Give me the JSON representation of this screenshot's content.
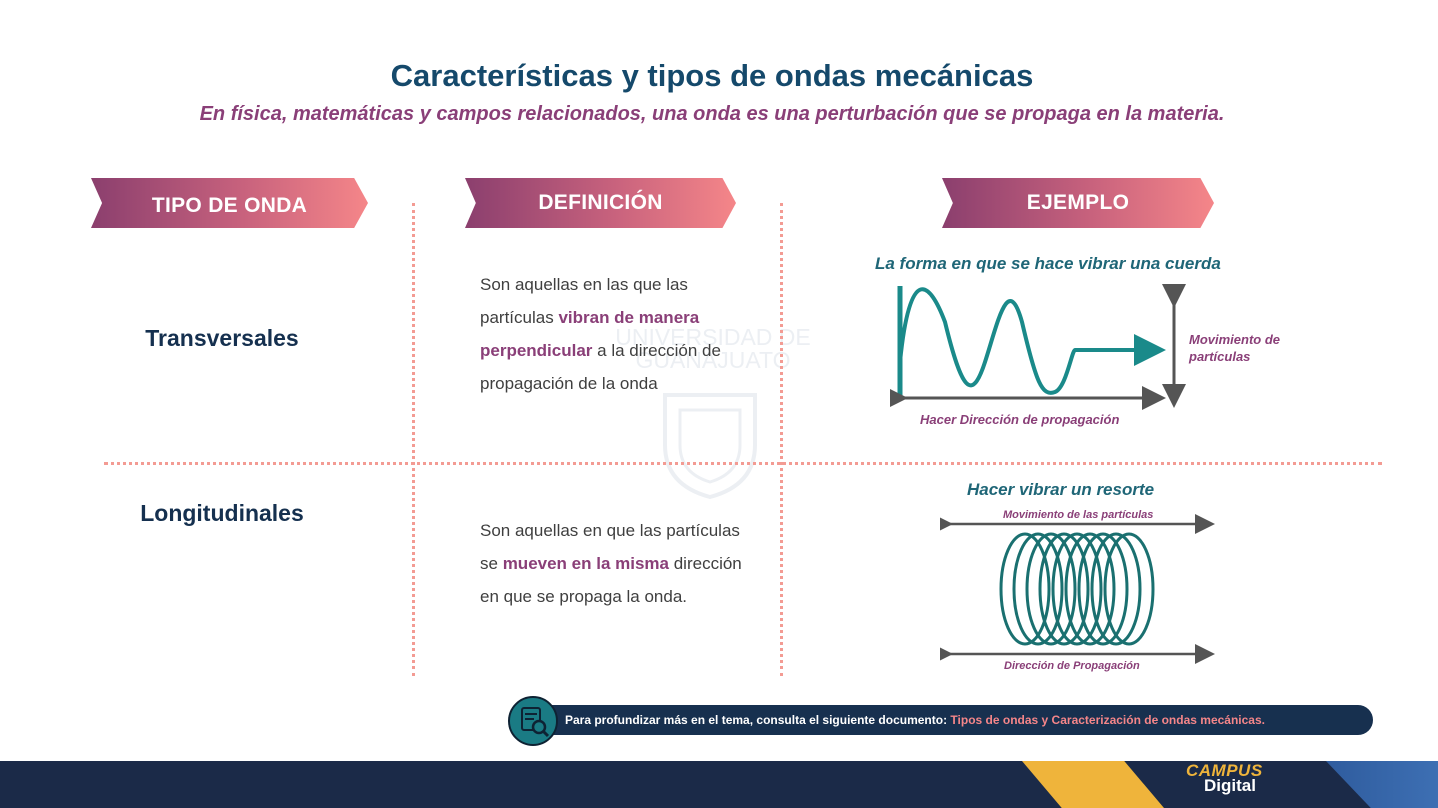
{
  "title": "Características y tipos de ondas mecánicas",
  "subtitle": "En física, matemáticas y campos relacionados, una onda es una perturbación que se propaga en la materia.",
  "headers": {
    "type": "TIPO DE ONDA",
    "definition": "DEFINICIÓN",
    "example": "EJEMPLO"
  },
  "watermark": "UNIVERSIDAD DE GUANAJUATO",
  "rows": [
    {
      "type": "Transversales",
      "definition": {
        "pre": "Son aquellas en las que las partículas ",
        "bold": "vibran de manera perpendicular",
        "post": " a la dirección de propagación de la onda"
      },
      "example": {
        "caption": "La forma en que se hace vibrar una cuerda",
        "label_movement": "Movimiento de partículas",
        "label_direction": "Hacer Dirección de propagación"
      }
    },
    {
      "type": "Longitudinales",
      "definition": {
        "pre": "Son aquellas en que las partículas se ",
        "bold": "mueven en la misma",
        "post": " dirección en que se propaga la onda."
      },
      "example": {
        "caption": "Hacer vibrar un resorte",
        "label_movement": "Movimiento de las partículas",
        "label_direction": "Dirección de Propagación"
      }
    }
  ],
  "footer": {
    "text": "Para profundizar más en el tema, consulta el siguiente documento: ",
    "link": "Tipos de ondas y Caracterización de ondas mecánicas."
  },
  "logo": {
    "line1": "CAMPUS",
    "line2": "Digital"
  },
  "colors": {
    "title": "#15496b",
    "accent": "#8a3f78",
    "teal": "#1f6677",
    "navy": "#1b2a48",
    "yellow": "#efb43b"
  }
}
